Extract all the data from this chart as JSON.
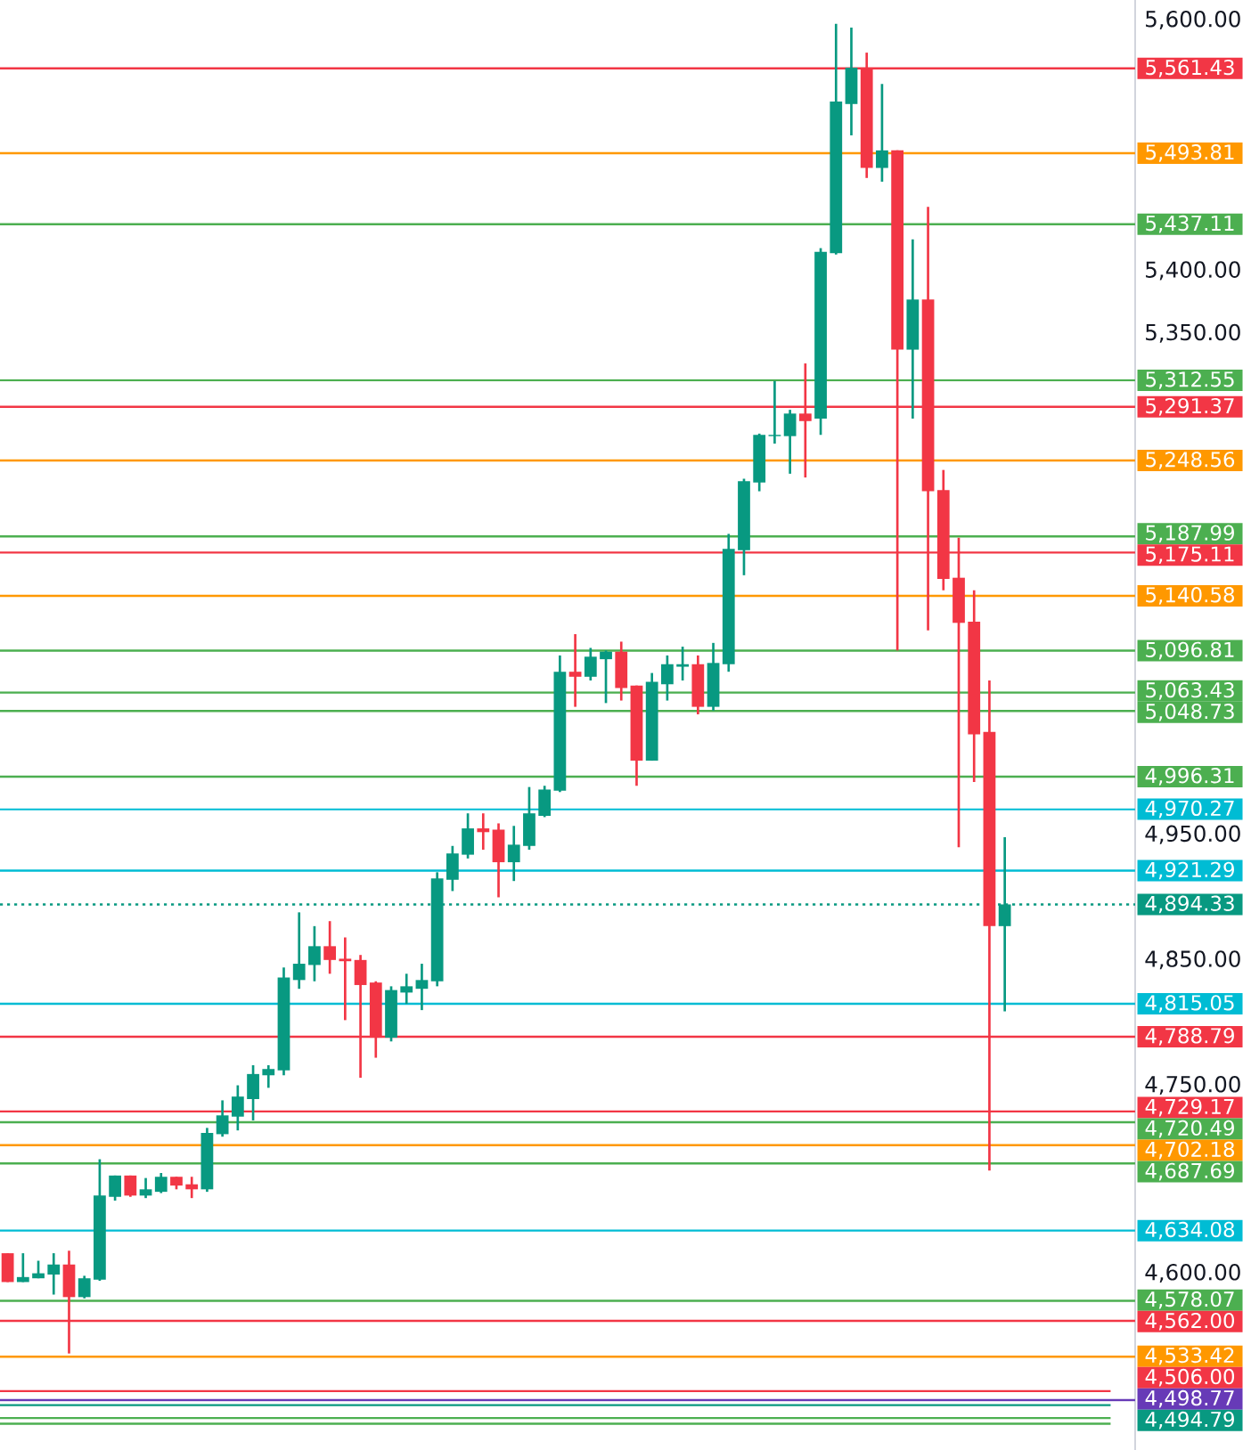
{
  "chart_data": {
    "type": "candlestick",
    "categories": [
      null,
      null,
      null,
      null,
      null,
      null,
      null,
      null,
      null,
      null,
      null,
      null,
      null,
      null,
      null,
      null,
      null,
      null,
      null,
      null,
      null,
      null,
      null,
      null,
      null,
      null,
      null,
      null,
      null,
      null,
      null,
      null,
      null,
      null,
      null,
      null,
      null,
      null,
      null,
      null,
      null,
      null,
      null,
      null,
      null,
      null,
      null,
      null,
      null,
      null,
      null,
      null,
      null,
      null,
      null,
      null,
      null,
      null,
      null,
      null,
      null,
      null,
      null,
      null,
      null,
      null,
      null,
      null,
      null,
      null,
      null,
      null,
      null,
      null
    ],
    "ohlc": [
      [
        4616,
        4616,
        4593,
        4593
      ],
      [
        4593,
        4616,
        4593,
        4597
      ],
      [
        4596,
        4610,
        4596,
        4600
      ],
      [
        4599,
        4616,
        4583,
        4607
      ],
      [
        4607,
        4618,
        4536,
        4581
      ],
      [
        4581,
        4598,
        4580,
        4596
      ],
      [
        4595,
        4691,
        4594,
        4662
      ],
      [
        4661,
        4678,
        4658,
        4678
      ],
      [
        4678,
        4678,
        4661,
        4662
      ],
      [
        4662,
        4676,
        4660,
        4667
      ],
      [
        4665,
        4680,
        4664,
        4677
      ],
      [
        4677,
        4677,
        4667,
        4670
      ],
      [
        4671,
        4677,
        4660,
        4667
      ],
      [
        4667,
        4716,
        4665,
        4712
      ],
      [
        4711,
        4738,
        4709,
        4726
      ],
      [
        4725,
        4750,
        4714,
        4741
      ],
      [
        4739,
        4766,
        4722,
        4759
      ],
      [
        4758,
        4766,
        4748,
        4763
      ],
      [
        4762,
        4844,
        4758,
        4836
      ],
      [
        4834,
        4888,
        4827,
        4847
      ],
      [
        4846,
        4877,
        4833,
        4861
      ],
      [
        4861,
        4881,
        4839,
        4850
      ],
      [
        4851,
        4868,
        4802,
        4849
      ],
      [
        4850,
        4854,
        4756,
        4830
      ],
      [
        4832,
        4833,
        4772,
        4788
      ],
      [
        4788,
        4829,
        4785,
        4826
      ],
      [
        4824,
        4839,
        4815,
        4829
      ],
      [
        4827,
        4847,
        4810,
        4834
      ],
      [
        4833,
        4920,
        4829,
        4915
      ],
      [
        4914,
        4941,
        4905,
        4935
      ],
      [
        4934,
        4967,
        4931,
        4955
      ],
      [
        4955,
        4967,
        4938,
        4952
      ],
      [
        4954,
        4959,
        4900,
        4928
      ],
      [
        4928,
        4957,
        4913,
        4942
      ],
      [
        4941,
        4988,
        4938,
        4967
      ],
      [
        4965,
        4989,
        4964,
        4986
      ],
      [
        4985,
        5093,
        4984,
        5080
      ],
      [
        5080,
        5110,
        5052,
        5076
      ],
      [
        5076,
        5099,
        5073,
        5092
      ],
      [
        5090,
        5097,
        5055,
        5096
      ],
      [
        5096,
        5104,
        5057,
        5067
      ],
      [
        5069,
        5069,
        4989,
        5009
      ],
      [
        5009,
        5079,
        5009,
        5072
      ],
      [
        5070,
        5093,
        5057,
        5086
      ],
      [
        5084,
        5100,
        5073,
        5086
      ],
      [
        5086,
        5093,
        5046,
        5052
      ],
      [
        5052,
        5103,
        5049,
        5087
      ],
      [
        5086,
        5190,
        5080,
        5178
      ],
      [
        5177,
        5234,
        5157,
        5232
      ],
      [
        5231,
        5270,
        5224,
        5269
      ],
      [
        5268,
        5312,
        5262,
        5269
      ],
      [
        5268,
        5289,
        5238,
        5286
      ],
      [
        5286,
        5326,
        5235,
        5280
      ],
      [
        5282,
        5418,
        5269,
        5415
      ],
      [
        5414,
        5597,
        5413,
        5535
      ],
      [
        5533,
        5594,
        5508,
        5562
      ],
      [
        5562,
        5574,
        5474,
        5482
      ],
      [
        5482,
        5549,
        5471,
        5496
      ],
      [
        5496,
        5496,
        5097,
        5337
      ],
      [
        5337,
        5425,
        5282,
        5377
      ],
      [
        5377,
        5451,
        5113,
        5224
      ],
      [
        5225,
        5241,
        5145,
        5154
      ],
      [
        5155,
        5187,
        4940,
        5119
      ],
      [
        5120,
        5145,
        4992,
        5030
      ],
      [
        5032,
        5073,
        4682,
        4877
      ],
      [
        4877,
        4948,
        4809,
        4894.33
      ],
      null,
      null,
      null,
      null,
      null,
      null,
      null,
      null
    ],
    "colors": [
      "#f23645",
      "#089981",
      "#089981",
      "#089981",
      "#f23645",
      "#089981",
      "#089981",
      "#089981",
      "#f23645",
      "#089981",
      "#089981",
      "#f23645",
      "#f23645",
      "#089981",
      "#089981",
      "#089981",
      "#089981",
      "#089981",
      "#089981",
      "#089981",
      "#089981",
      "#f23645",
      "#f23645",
      "#f23645",
      "#f23645",
      "#089981",
      "#089981",
      "#089981",
      "#089981",
      "#089981",
      "#089981",
      "#f23645",
      "#f23645",
      "#089981",
      "#089981",
      "#089981",
      "#089981",
      "#f23645",
      "#089981",
      "#089981",
      "#f23645",
      "#f23645",
      "#089981",
      "#089981",
      "#089981",
      "#f23645",
      "#089981",
      "#089981",
      "#089981",
      "#089981",
      "#089981",
      "#089981",
      "#f23645",
      "#089981",
      "#089981",
      "#089981",
      "#f23645",
      "#089981",
      "#f23645",
      "#089981",
      "#f23645",
      "#f23645",
      "#f23645",
      "#f23645",
      "#f23645",
      "#089981",
      null,
      null,
      null,
      null,
      null,
      null,
      null,
      null
    ],
    "ylim": [
      4459,
      5616
    ],
    "yticks": [
      {
        "value": 5600,
        "label": "5,600.00"
      },
      {
        "value": 5400,
        "label": "5,400.00"
      },
      {
        "value": 5350,
        "label": "5,350.00"
      },
      {
        "value": 4950,
        "label": "4,950.00"
      },
      {
        "value": 4850,
        "label": "4,850.00"
      },
      {
        "value": 4750,
        "label": "4,750.00"
      },
      {
        "value": 4600,
        "label": "4,600.00"
      }
    ],
    "ref_lines": [
      {
        "axis": "y",
        "value": 5561.43,
        "label": "5,561.43",
        "color": "#f23645"
      },
      {
        "axis": "y",
        "value": 5493.81,
        "label": "5,493.81",
        "color": "#ff9800"
      },
      {
        "axis": "y",
        "value": 5437.11,
        "label": "5,437.11",
        "color": "#4caf50"
      },
      {
        "axis": "y",
        "value": 5312.55,
        "label": "5,312.55",
        "color": "#4caf50"
      },
      {
        "axis": "y",
        "value": 5291.37,
        "label": "5,291.37",
        "color": "#f23645"
      },
      {
        "axis": "y",
        "value": 5248.56,
        "label": "5,248.56",
        "color": "#ff9800"
      },
      {
        "axis": "y",
        "value": 5187.99,
        "label": "5,187.99",
        "color": "#4caf50"
      },
      {
        "axis": "y",
        "value": 5175.11,
        "label": "5,175.11",
        "color": "#f23645"
      },
      {
        "axis": "y",
        "value": 5140.58,
        "label": "5,140.58",
        "color": "#ff9800"
      },
      {
        "axis": "y",
        "value": 5096.81,
        "label": "5,096.81",
        "color": "#4caf50"
      },
      {
        "axis": "y",
        "value": 5063.43,
        "label": "5,063.43",
        "color": "#4caf50"
      },
      {
        "axis": "y",
        "value": 5048.73,
        "label": "5,048.73",
        "color": "#4caf50"
      },
      {
        "axis": "y",
        "value": 4996.31,
        "label": "4,996.31",
        "color": "#4caf50"
      },
      {
        "axis": "y",
        "value": 4970.27,
        "label": "4,970.27",
        "color": "#00bcd4"
      },
      {
        "axis": "y",
        "value": 4921.29,
        "label": "4,921.29",
        "color": "#00bcd4"
      },
      {
        "axis": "y",
        "value": 4894.33,
        "label": "4,894.33",
        "color": "#089981",
        "line_style": "dotted"
      },
      {
        "axis": "y",
        "value": 4815.05,
        "label": "4,815.05",
        "color": "#00bcd4"
      },
      {
        "axis": "y",
        "value": 4788.79,
        "label": "4,788.79",
        "color": "#f23645"
      },
      {
        "axis": "y",
        "value": 4729.17,
        "label": "4,729.17",
        "color": "#f23645"
      },
      {
        "axis": "y",
        "value": 4720.49,
        "label": "4,720.49",
        "color": "#4caf50"
      },
      {
        "axis": "y",
        "value": 4702.18,
        "label": "4,702.18",
        "color": "#ff9800"
      },
      {
        "axis": "y",
        "value": 4687.69,
        "label": "4,687.69",
        "color": "#4caf50"
      },
      {
        "axis": "y",
        "value": 4634.08,
        "label": "4,634.08",
        "color": "#00bcd4"
      },
      {
        "axis": "y",
        "value": 4578.07,
        "label": "4,578.07",
        "color": "#4caf50"
      },
      {
        "axis": "y",
        "value": 4562.0,
        "label": "4,562.00",
        "color": "#f23645"
      },
      {
        "axis": "y",
        "value": 4533.42,
        "label": "4,533.42",
        "color": "#ff9800"
      },
      {
        "axis": "y",
        "value": 4506.0,
        "label": "4,506.00",
        "color": "#f23645"
      },
      {
        "axis": "y",
        "value": 4498.77,
        "label": "4,498.77",
        "color": "#673ab7"
      },
      {
        "axis": "y",
        "value": 4494.79,
        "label": "4,494.79",
        "color": "#089981"
      },
      {
        "axis": "y",
        "value": 4484.5,
        "color": "#4caf50"
      },
      {
        "axis": "y",
        "value": 4480,
        "color": "#4caf50"
      }
    ]
  }
}
